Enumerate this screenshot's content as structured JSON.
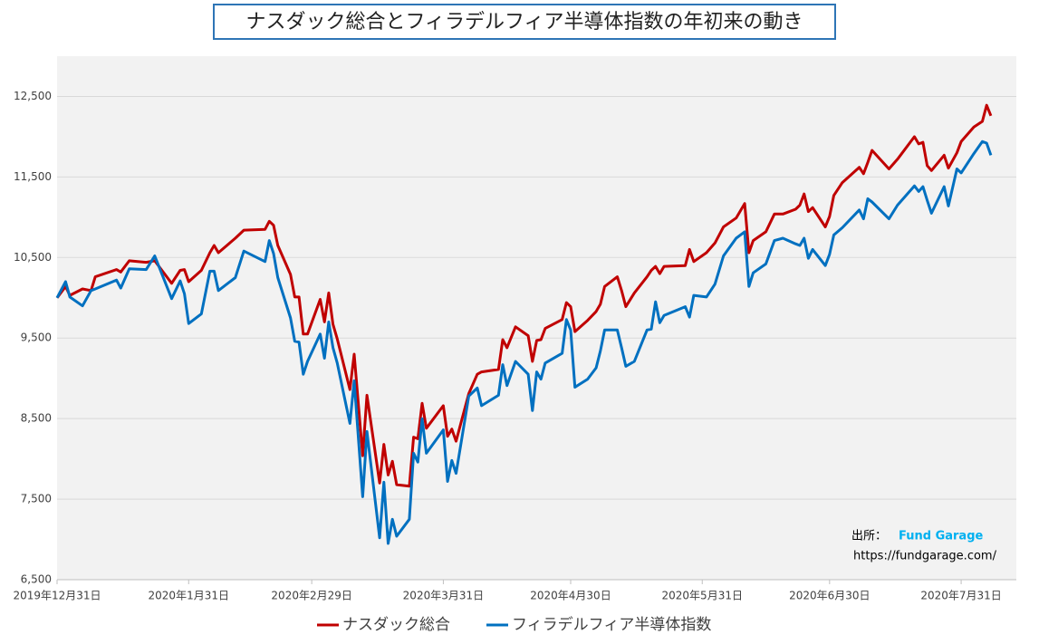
{
  "chart_data": {
    "type": "line",
    "title": "ナスダック総合とフィラデルフィア半導体指数の年初来の動き",
    "x": [
      "2019-12-31",
      "2020-01-02",
      "2020-01-03",
      "2020-01-06",
      "2020-01-08",
      "2020-01-09",
      "2020-01-14",
      "2020-01-15",
      "2020-01-17",
      "2020-01-21",
      "2020-01-23",
      "2020-01-27",
      "2020-01-29",
      "2020-01-30",
      "2020-01-31",
      "2020-02-03",
      "2020-02-05",
      "2020-02-06",
      "2020-02-07",
      "2020-02-11",
      "2020-02-13",
      "2020-02-18",
      "2020-02-19",
      "2020-02-20",
      "2020-02-21",
      "2020-02-24",
      "2020-02-25",
      "2020-02-26",
      "2020-02-27",
      "2020-02-28",
      "2020-03-02",
      "2020-03-03",
      "2020-03-04",
      "2020-03-05",
      "2020-03-06",
      "2020-03-09",
      "2020-03-10",
      "2020-03-12",
      "2020-03-13",
      "2020-03-16",
      "2020-03-17",
      "2020-03-18",
      "2020-03-19",
      "2020-03-20",
      "2020-03-23",
      "2020-03-24",
      "2020-03-25",
      "2020-03-26",
      "2020-03-27",
      "2020-03-31",
      "2020-04-01",
      "2020-04-02",
      "2020-04-03",
      "2020-04-06",
      "2020-04-08",
      "2020-04-09",
      "2020-04-13",
      "2020-04-14",
      "2020-04-15",
      "2020-04-17",
      "2020-04-20",
      "2020-04-21",
      "2020-04-22",
      "2020-04-23",
      "2020-04-24",
      "2020-04-28",
      "2020-04-29",
      "2020-04-30",
      "2020-05-01",
      "2020-05-04",
      "2020-05-06",
      "2020-05-07",
      "2020-05-08",
      "2020-05-11",
      "2020-05-12",
      "2020-05-13",
      "2020-05-15",
      "2020-05-18",
      "2020-05-19",
      "2020-05-20",
      "2020-05-21",
      "2020-05-22",
      "2020-05-27",
      "2020-05-28",
      "2020-05-29",
      "2020-06-01",
      "2020-06-03",
      "2020-06-05",
      "2020-06-08",
      "2020-06-10",
      "2020-06-11",
      "2020-06-12",
      "2020-06-15",
      "2020-06-17",
      "2020-06-19",
      "2020-06-22",
      "2020-06-23",
      "2020-06-24",
      "2020-06-25",
      "2020-06-26",
      "2020-06-29",
      "2020-06-30",
      "2020-07-01",
      "2020-07-03",
      "2020-07-07",
      "2020-07-08",
      "2020-07-09",
      "2020-07-10",
      "2020-07-14",
      "2020-07-16",
      "2020-07-20",
      "2020-07-21",
      "2020-07-22",
      "2020-07-23",
      "2020-07-24",
      "2020-07-27",
      "2020-07-28",
      "2020-07-30",
      "2020-07-31",
      "2020-08-03",
      "2020-08-05",
      "2020-08-06",
      "2020-08-07"
    ],
    "series": [
      {
        "name": "ナスダック総合",
        "color": "#c00000",
        "values": [
          10000,
          10140,
          10030,
          10110,
          10090,
          10260,
          10350,
          10320,
          10460,
          10440,
          10460,
          10180,
          10340,
          10350,
          10200,
          10340,
          10560,
          10650,
          10560,
          10740,
          10840,
          10850,
          10950,
          10900,
          10650,
          10290,
          10010,
          10010,
          9550,
          9550,
          9980,
          9700,
          10060,
          9670,
          9490,
          8860,
          9300,
          8040,
          8790,
          7700,
          8180,
          7800,
          7970,
          7680,
          7660,
          8270,
          8250,
          8690,
          8380,
          8660,
          8280,
          8370,
          8220,
          8810,
          9050,
          9080,
          9110,
          9480,
          9380,
          9640,
          9530,
          9210,
          9470,
          9480,
          9620,
          9730,
          9940,
          9890,
          9580,
          9720,
          9830,
          9920,
          10140,
          10260,
          10090,
          9890,
          10060,
          10260,
          10340,
          10390,
          10300,
          10390,
          10400,
          10600,
          10450,
          10560,
          10680,
          10880,
          10990,
          11170,
          10560,
          10710,
          10820,
          11040,
          11040,
          11100,
          11150,
          11290,
          11070,
          11120,
          10880,
          11010,
          11270,
          11430,
          11620,
          11540,
          11680,
          11830,
          11600,
          11720,
          12000,
          11910,
          11930,
          11640,
          11580,
          11770,
          11610,
          11800,
          11940,
          12120,
          12190,
          12390,
          12260
        ]
      },
      {
        "name": "フィラデルフィア半導体指数",
        "color": "#0070c0",
        "values": [
          10000,
          10200,
          10010,
          9900,
          10090,
          10110,
          10220,
          10120,
          10360,
          10350,
          10520,
          9990,
          10210,
          10050,
          9680,
          9800,
          10330,
          10330,
          10090,
          10250,
          10580,
          10450,
          10710,
          10550,
          10250,
          9750,
          9460,
          9450,
          9050,
          9210,
          9550,
          9250,
          9700,
          9380,
          9190,
          8440,
          8970,
          7530,
          8340,
          7020,
          7710,
          6950,
          7250,
          7040,
          7250,
          8070,
          7960,
          8500,
          8070,
          8360,
          7720,
          7980,
          7820,
          8780,
          8880,
          8660,
          8790,
          9170,
          8910,
          9210,
          9050,
          8600,
          9080,
          8990,
          9190,
          9310,
          9730,
          9600,
          8890,
          8990,
          9130,
          9340,
          9600,
          9600,
          9380,
          9150,
          9210,
          9600,
          9610,
          9950,
          9690,
          9780,
          9890,
          9760,
          10030,
          10010,
          10170,
          10520,
          10740,
          10820,
          10140,
          10310,
          10420,
          10710,
          10740,
          10670,
          10650,
          10740,
          10490,
          10600,
          10400,
          10540,
          10780,
          10870,
          11090,
          10980,
          11230,
          11190,
          10980,
          11150,
          11390,
          11320,
          11380,
          11210,
          11050,
          11380,
          11140,
          11600,
          11550,
          11790,
          11940,
          11920,
          11770
        ]
      }
    ],
    "xlim": [
      "2019-12-31",
      "2020-08-13"
    ],
    "xticks": [
      {
        "value": "2019-12-31",
        "label": "2019年12月31日"
      },
      {
        "value": "2020-01-31",
        "label": "2020年1月31日"
      },
      {
        "value": "2020-02-29",
        "label": "2020年2月29日"
      },
      {
        "value": "2020-03-31",
        "label": "2020年3月31日"
      },
      {
        "value": "2020-04-30",
        "label": "2020年4月30日"
      },
      {
        "value": "2020-05-31",
        "label": "2020年5月31日"
      },
      {
        "value": "2020-06-30",
        "label": "2020年6月30日"
      },
      {
        "value": "2020-07-31",
        "label": "2020年7月31日"
      }
    ],
    "ylim": [
      6500,
      13000
    ],
    "yticks": [
      {
        "value": 6500,
        "label": "6,500"
      },
      {
        "value": 7500,
        "label": "7,500"
      },
      {
        "value": 8500,
        "label": "8,500"
      },
      {
        "value": 9500,
        "label": "9,500"
      },
      {
        "value": 10500,
        "label": "10,500"
      },
      {
        "value": 11500,
        "label": "11,500"
      },
      {
        "value": 12500,
        "label": "12,500"
      }
    ],
    "grid": true,
    "legend": "bottom",
    "annotations": {
      "source_label": "出所：",
      "source_name": "Fund Garage",
      "url": "https://fundgarage.com/"
    }
  }
}
